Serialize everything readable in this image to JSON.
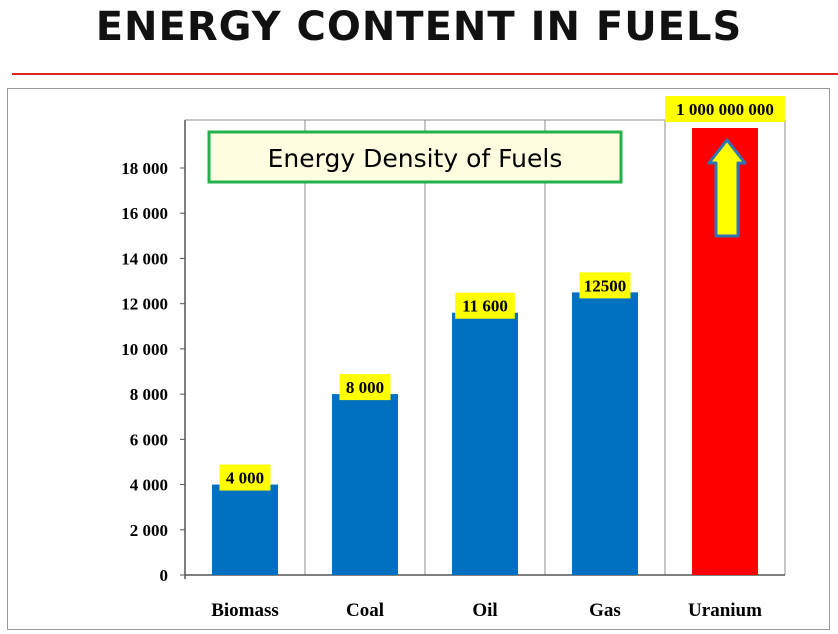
{
  "page": {
    "title": "ENERGY CONTENT IN FUELS"
  },
  "colors": {
    "title_rule": "#e0231c",
    "bar_primary": "#0070c0",
    "bar_highlight": "#ff0000",
    "label_background": "#ffff00",
    "title_box_border": "#22b14c",
    "arrow_fill": "#ffff00",
    "arrow_stroke": "#2e75b6"
  },
  "chart_data": {
    "type": "bar",
    "title": "Energy Density of Fuels",
    "xlabel": "",
    "ylabel": "",
    "ylim": [
      0,
      20000
    ],
    "yticks": [
      0,
      2000,
      4000,
      6000,
      8000,
      10000,
      12000,
      14000,
      16000,
      18000
    ],
    "ytick_labels": [
      "0",
      "2 000",
      "4 000",
      "6 000",
      "8 000",
      "10 000",
      "12 000",
      "14 000",
      "16 000",
      "18 000"
    ],
    "grid": true,
    "categories": [
      "Biomass",
      "Coal",
      "Oil",
      "Gas",
      "Uranium"
    ],
    "values": [
      4000,
      8000,
      11600,
      12500,
      1000000000
    ],
    "data_labels": [
      "4 000",
      "8 000",
      "11 600",
      "12500",
      "1 000 000 000"
    ],
    "highlight_index": 4,
    "annotation": "up-arrow-icon"
  }
}
